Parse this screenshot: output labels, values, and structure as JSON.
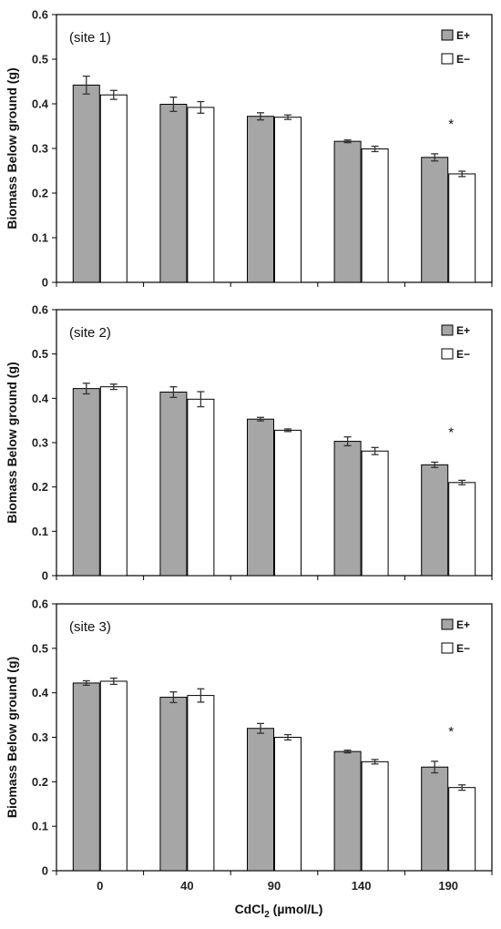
{
  "chart_data": [
    {
      "type": "bar",
      "annotation": "(site 1)",
      "ylabel": "Biomass Below ground (g)",
      "ylim": [
        0,
        0.6
      ],
      "yticks": [
        "0",
        "0.1",
        "0.2",
        "0.3",
        "0.4",
        "0.5",
        "0.6"
      ],
      "categories": [
        "0",
        "40",
        "90",
        "140",
        "190"
      ],
      "series": [
        {
          "name": "E+",
          "color": "#a6a6a6",
          "values": [
            0.442,
            0.399,
            0.372,
            0.316,
            0.28
          ],
          "errors": [
            0.02,
            0.016,
            0.008,
            0.003,
            0.008
          ]
        },
        {
          "name": "E−",
          "color": "#ffffff",
          "values": [
            0.42,
            0.392,
            0.37,
            0.299,
            0.243
          ],
          "errors": [
            0.01,
            0.013,
            0.005,
            0.006,
            0.006
          ]
        }
      ],
      "significance": [
        {
          "category": "190",
          "label": "*"
        }
      ]
    },
    {
      "type": "bar",
      "annotation": "(site 2)",
      "ylabel": "Biomass Below ground (g)",
      "ylim": [
        0,
        0.6
      ],
      "yticks": [
        "0",
        "0.1",
        "0.2",
        "0.3",
        "0.4",
        "0.5",
        "0.6"
      ],
      "categories": [
        "0",
        "40",
        "90",
        "140",
        "190"
      ],
      "series": [
        {
          "name": "E+",
          "color": "#a6a6a6",
          "values": [
            0.422,
            0.414,
            0.353,
            0.303,
            0.25
          ],
          "errors": [
            0.012,
            0.012,
            0.004,
            0.01,
            0.006
          ]
        },
        {
          "name": "E−",
          "color": "#ffffff",
          "values": [
            0.426,
            0.398,
            0.328,
            0.281,
            0.21
          ],
          "errors": [
            0.006,
            0.017,
            0.003,
            0.008,
            0.005
          ]
        }
      ],
      "significance": [
        {
          "category": "190",
          "label": "*"
        }
      ]
    },
    {
      "type": "bar",
      "annotation": "(site 3)",
      "ylabel": "Biomass Below ground (g)",
      "xlabel": "CdCl2 (µmol/L)",
      "ylim": [
        0,
        0.6
      ],
      "yticks": [
        "0",
        "0.1",
        "0.2",
        "0.3",
        "0.4",
        "0.5",
        "0.6"
      ],
      "categories": [
        "0",
        "40",
        "90",
        "140",
        "190"
      ],
      "series": [
        {
          "name": "E+",
          "color": "#a6a6a6",
          "values": [
            0.422,
            0.39,
            0.32,
            0.268,
            0.233
          ],
          "errors": [
            0.005,
            0.012,
            0.011,
            0.003,
            0.013
          ]
        },
        {
          "name": "E−",
          "color": "#ffffff",
          "values": [
            0.426,
            0.394,
            0.3,
            0.245,
            0.187
          ],
          "errors": [
            0.007,
            0.015,
            0.006,
            0.005,
            0.006
          ]
        }
      ],
      "significance": [
        {
          "category": "190",
          "label": "*"
        }
      ]
    }
  ],
  "xlabel_parts": {
    "pre": "CdCl",
    "sub": "2",
    "post": " (µmol/L)"
  }
}
